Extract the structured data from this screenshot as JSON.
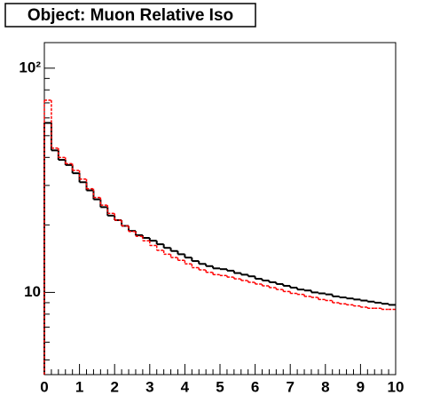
{
  "chart_data": {
    "type": "histogram",
    "title": "Object: Muon Relative Iso",
    "log_y": true,
    "bins": [
      0,
      0.2,
      0.4,
      0.6,
      0.8,
      1,
      1.2,
      1.4,
      1.6,
      1.8,
      2,
      2.2,
      2.4,
      2.6,
      2.8,
      3,
      3.2,
      3.4,
      3.6,
      3.8,
      4,
      4.2,
      4.4,
      4.6,
      4.8,
      5,
      5.2,
      5.4,
      5.6,
      5.8,
      6,
      6.2,
      6.4,
      6.6,
      6.8,
      7,
      7.2,
      7.4,
      7.6,
      7.8,
      8,
      8.2,
      8.4,
      8.6,
      8.8,
      9,
      9.2,
      9.4,
      9.6,
      9.8,
      10
    ],
    "series": [
      {
        "color": "#000000",
        "values": [
          57,
          43,
          39,
          37,
          34,
          31,
          28.5,
          26,
          24,
          22,
          21,
          19.8,
          18.8,
          18,
          17.5,
          17,
          16.4,
          15.8,
          15.3,
          14.8,
          14.3,
          13.8,
          13.4,
          13.1,
          12.8,
          12.7,
          12.5,
          12.2,
          12.0,
          11.8,
          11.5,
          11.3,
          11.1,
          10.9,
          10.7,
          10.5,
          10.3,
          10.2,
          10.0,
          9.9,
          9.8,
          9.6,
          9.5,
          9.4,
          9.3,
          9.2,
          9.1,
          9.0,
          8.9,
          8.8
        ]
      },
      {
        "color": "#ff0000",
        "values": [
          72,
          44,
          40,
          37.5,
          35,
          32,
          29,
          26.5,
          24.5,
          22.5,
          21,
          19.8,
          18.7,
          17.8,
          17,
          16.2,
          15.4,
          14.8,
          14.3,
          13.9,
          13.4,
          12.9,
          12.6,
          12.3,
          12.0,
          11.9,
          11.7,
          11.5,
          11.3,
          11.1,
          10.9,
          10.7,
          10.5,
          10.3,
          10.1,
          9.9,
          9.8,
          9.6,
          9.5,
          9.3,
          9.2,
          9.0,
          8.9,
          8.8,
          8.7,
          8.6,
          8.5,
          8.5,
          8.4,
          8.4
        ]
      }
    ],
    "xlim": [
      0,
      10
    ],
    "xticks": [
      0,
      1,
      2,
      3,
      4,
      5,
      6,
      7,
      8,
      9,
      10
    ],
    "ylim": [
      4.3,
      130
    ],
    "yticks": [
      10,
      {
        "value": 100,
        "label": "10²"
      }
    ]
  }
}
